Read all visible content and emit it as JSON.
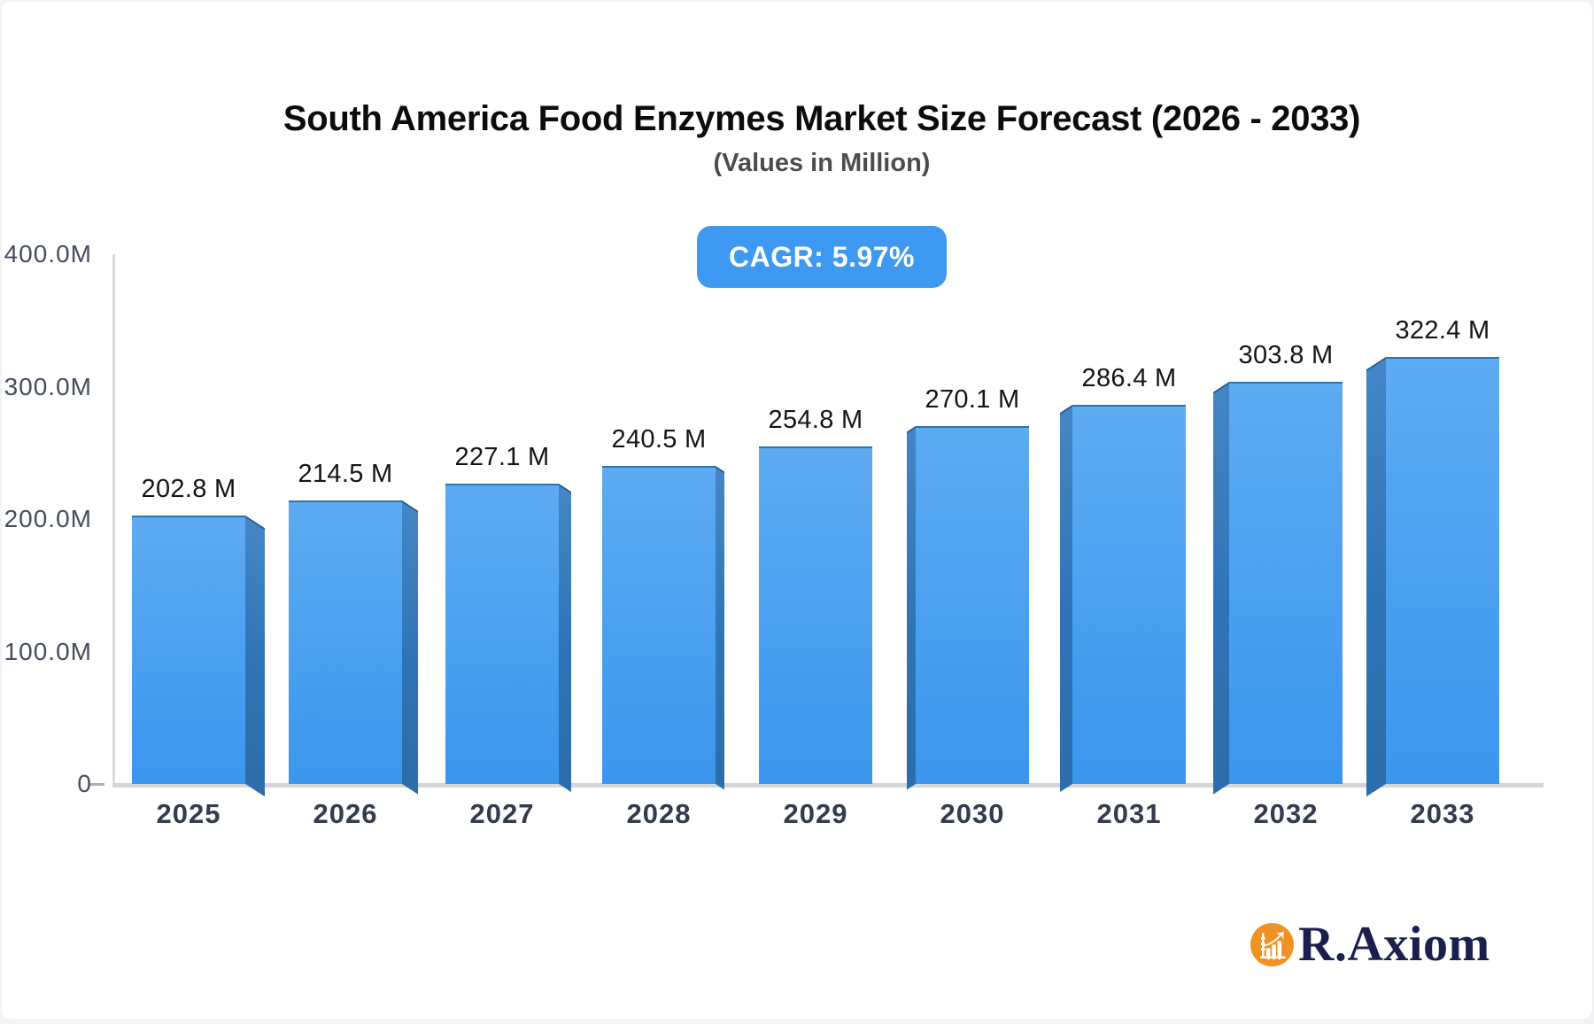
{
  "header": {
    "title": "South America Food Enzymes Market Size Forecast (2026 - 2033)",
    "subtitle": "(Values in Million)",
    "cagr_label": "CAGR: 5.97%"
  },
  "chart_data": {
    "type": "bar",
    "style": "3d-column-perspective",
    "title": "South America Food Enzymes Market Size Forecast (2026 - 2033)",
    "subtitle": "(Values in Million)",
    "unit": "Million",
    "categories": [
      "2025",
      "2026",
      "2027",
      "2028",
      "2029",
      "2030",
      "2031",
      "2032",
      "2033"
    ],
    "values": [
      202.8,
      214.5,
      227.1,
      240.5,
      254.8,
      270.1,
      286.4,
      303.8,
      322.4
    ],
    "value_labels": [
      "202.8 M",
      "214.5 M",
      "227.1 M",
      "240.5 M",
      "254.8 M",
      "270.1 M",
      "286.4 M",
      "303.8 M",
      "322.4 M"
    ],
    "y_ticks": [
      {
        "label": "400.0M",
        "value": 400
      },
      {
        "label": "300.0M",
        "value": 300
      },
      {
        "label": "200.0M",
        "value": 200
      },
      {
        "label": "100.0M",
        "value": 100
      },
      {
        "label": "0",
        "value": 0
      }
    ],
    "ylim": [
      0,
      400
    ],
    "xlabel": "",
    "ylabel": "",
    "grid": false,
    "legend": false,
    "annotations": [
      "CAGR: 5.97%"
    ]
  },
  "colors": {
    "badge_bg": "#3d99f2",
    "bar_face_top": "#5dabf1",
    "bar_face_bottom": "#3b96ee",
    "bar_side": "#2e74b5",
    "axis_line": "#d9dbdf",
    "tick_text": "#454d5d",
    "x_tick_text": "#333b4d",
    "value_text": "#141414",
    "logo_orange": "#f09123",
    "logo_navy": "#1c1f4e"
  },
  "logo": {
    "brand": "R.Axiom"
  }
}
